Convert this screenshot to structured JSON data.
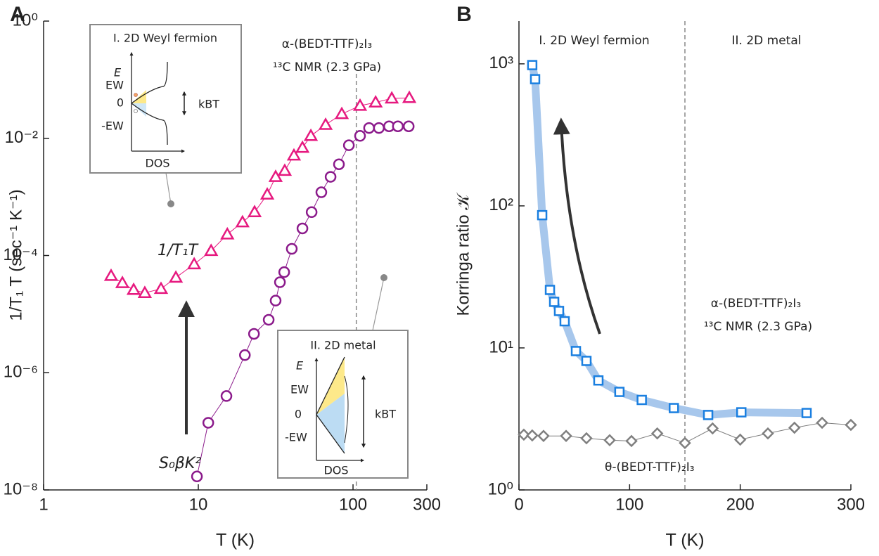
{
  "chart_data": [
    {
      "type": "scatter",
      "panel_label": "A",
      "xlog": true,
      "ylog": true,
      "x_label": "T (K)",
      "y_label": "1/T₁ T (sec⁻¹ K⁻¹)",
      "xlim": [
        1,
        300
      ],
      "ylim": [
        1e-08,
        1
      ],
      "xticks": [
        1,
        10,
        100,
        300
      ],
      "yticks": [
        {
          "value": 1,
          "label": "10⁰"
        },
        {
          "value": 0.01,
          "label": "10⁻²"
        },
        {
          "value": 0.0001,
          "label": "10⁻⁴"
        },
        {
          "value": 1e-06,
          "label": "10⁻⁶"
        },
        {
          "value": 1e-08,
          "label": "10⁻⁸"
        }
      ],
      "vline": 105,
      "annotations": [
        "α-(BEDT-TTF)₂I₃",
        "¹³C NMR (2.3 GPa)"
      ],
      "insets": [
        {
          "title": "I. 2D Weyl fermion",
          "labels": [
            "E",
            "EW",
            "0",
            "-EW",
            "kBT",
            "DOS"
          ]
        },
        {
          "title": "II. 2D metal",
          "labels": [
            "E",
            "EW",
            "0",
            "-EW",
            "kBT",
            "DOS"
          ]
        }
      ],
      "series": [
        {
          "name": "1/T₁T",
          "color": "#e6197f",
          "marker": "triangle",
          "line_width": 1,
          "x": [
            2.73,
            3.23,
            3.82,
            4.51,
            5.74,
            7.16,
            9.4,
            12.1,
            15.4,
            19.3,
            23.1,
            27.9,
            31.6,
            36.2,
            41.5,
            47.1,
            53.4,
            66.5,
            84.6,
            111,
            140,
            178,
            231
          ],
          "values": [
            4.5e-05,
            3.4e-05,
            2.6e-05,
            2.3e-05,
            2.7e-05,
            4.2e-05,
            7.1e-05,
            0.00012,
            0.00023,
            0.00037,
            0.00055,
            0.0011,
            0.0022,
            0.0028,
            0.0051,
            0.0069,
            0.011,
            0.017,
            0.026,
            0.036,
            0.041,
            0.048,
            0.049
          ]
        },
        {
          "name": "S₀βK²",
          "color": "#8b1a8b",
          "marker": "circle",
          "line_width": 1,
          "x": [
            9.8,
            11.6,
            15.2,
            20,
            22.9,
            28.5,
            31.6,
            33.7,
            35.9,
            40.2,
            47.1,
            54,
            62.4,
            71.6,
            81.1,
            94,
            111,
            127,
            147,
            171,
            195,
            229
          ],
          "values": [
            1.7e-08,
            1.4e-07,
            4e-07,
            2e-06,
            4.6e-06,
            8e-06,
            1.7e-05,
            3.5e-05,
            5.2e-05,
            0.00013,
            0.00029,
            0.00055,
            0.0012,
            0.0022,
            0.0036,
            0.0076,
            0.011,
            0.015,
            0.015,
            0.016,
            0.016,
            0.016
          ]
        }
      ]
    },
    {
      "type": "scatter",
      "panel_label": "B",
      "xlog": false,
      "ylog": true,
      "x_label": "T (K)",
      "y_label": "Korringa ratio 𝒦",
      "xlim": [
        0,
        300
      ],
      "ylim": [
        1,
        2000
      ],
      "xticks": [
        0,
        100,
        200,
        300
      ],
      "yticks": [
        {
          "value": 1,
          "label": "10⁰"
        },
        {
          "value": 10,
          "label": "10¹"
        },
        {
          "value": 100,
          "label": "10²"
        },
        {
          "value": 1000,
          "label": "10³"
        }
      ],
      "vline": 150,
      "annotations": [
        "I. 2D Weyl fermion",
        "II. 2D metal",
        "α-(BEDT-TTF)₂I₃",
        "¹³C NMR (2.3 GPa)"
      ],
      "series": [
        {
          "color": "#1a7fe0",
          "line_color": "#a7c7ec",
          "marker": "square",
          "line_width": 11,
          "x": [
            12,
            14.6,
            21,
            28,
            31.8,
            36.2,
            41.3,
            51.5,
            61,
            71.8,
            90.8,
            111,
            140,
            171,
            201,
            260
          ],
          "values": [
            980,
            780,
            86,
            25.6,
            21.1,
            18.2,
            15.4,
            9.5,
            8.1,
            5.9,
            4.9,
            4.3,
            3.77,
            3.37,
            3.52,
            3.48
          ]
        },
        {
          "name": "θ-(BEDT-TTF)₂I₃",
          "color": "#7f7f7f",
          "marker": "diamond",
          "line_width": 1,
          "x": [
            4.4,
            12,
            22.2,
            42.6,
            61,
            82,
            101.7,
            125,
            150,
            175,
            200,
            225,
            249,
            274,
            300
          ],
          "values": [
            2.45,
            2.42,
            2.4,
            2.4,
            2.31,
            2.24,
            2.21,
            2.5,
            2.14,
            2.71,
            2.26,
            2.5,
            2.74,
            2.97,
            2.87
          ]
        }
      ]
    }
  ]
}
